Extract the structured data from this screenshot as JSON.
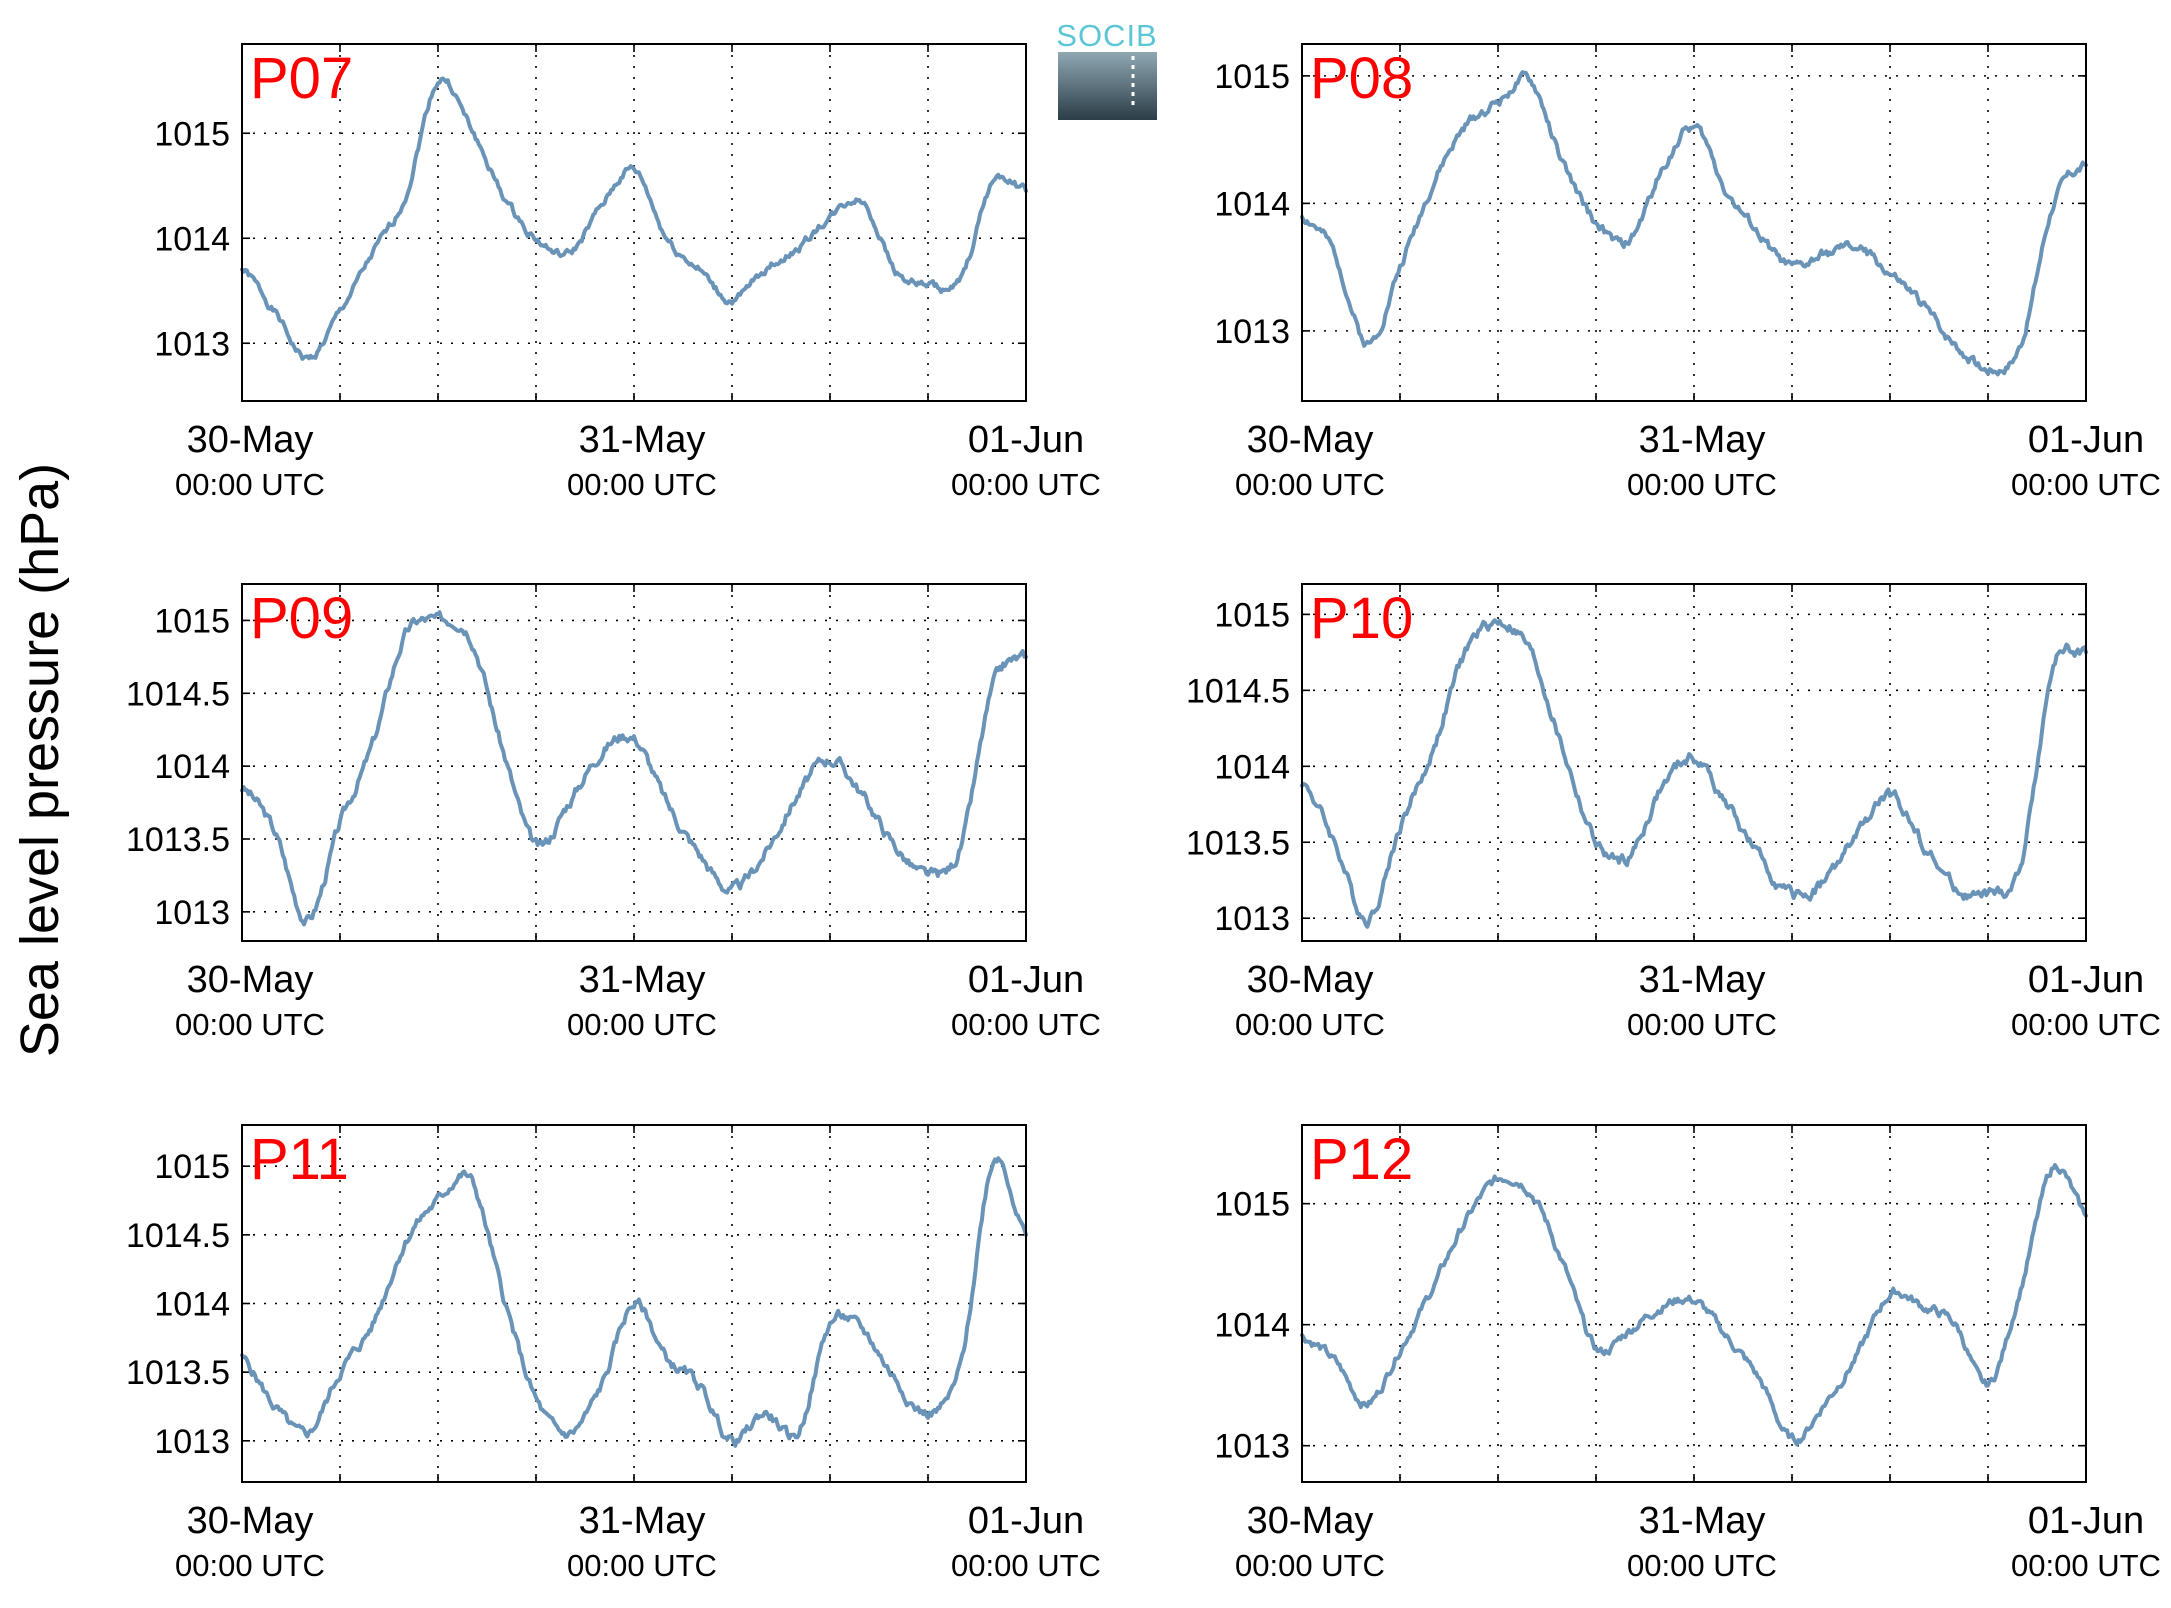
{
  "figure": {
    "ylabel": "Sea level pressure (hPa)",
    "logo_text": "SOCIB"
  },
  "colors": {
    "line": "#6a93b8",
    "station_label": "#ff0000",
    "axis": "#000000",
    "grid": "#000000",
    "logo_top": "#5cc5d6",
    "logo_bottom": "#2b3d47"
  },
  "chart_data": [
    {
      "type": "line",
      "title": "P07",
      "x_tick_labels": [
        [
          "30-May",
          "00:00 UTC"
        ],
        [
          "31-May",
          "00:00 UTC"
        ],
        [
          "01-Jun",
          "00:00 UTC"
        ]
      ],
      "x_range_hours": [
        0,
        48
      ],
      "ylim": [
        1012.45,
        1015.85
      ],
      "y_ticks": [
        1013,
        1014,
        1015
      ],
      "y_tick_labels": [
        "1013",
        "1014",
        "1015"
      ],
      "grid": true,
      "series": [
        {
          "x": [
            0,
            2,
            4,
            6,
            8,
            10,
            12,
            14,
            16,
            18,
            20,
            22,
            24,
            26,
            28,
            30,
            32,
            34,
            36,
            38,
            40,
            42,
            44,
            46,
            48
          ],
          "values": [
            1013.7,
            1013.3,
            1012.85,
            1013.3,
            1013.85,
            1014.4,
            1015.5,
            1015.05,
            1014.4,
            1014.0,
            1013.85,
            1014.3,
            1014.65,
            1014.0,
            1013.7,
            1013.4,
            1013.7,
            1013.9,
            1014.2,
            1014.35,
            1013.7,
            1013.55,
            1013.6,
            1014.55,
            1014.45
          ]
        }
      ]
    },
    {
      "type": "line",
      "title": "P08",
      "x_tick_labels": [
        [
          "30-May",
          "00:00 UTC"
        ],
        [
          "31-May",
          "00:00 UTC"
        ],
        [
          "01-Jun",
          "00:00 UTC"
        ]
      ],
      "x_range_hours": [
        0,
        48
      ],
      "ylim": [
        1012.45,
        1015.25
      ],
      "y_ticks": [
        1013,
        1014,
        1015
      ],
      "y_tick_labels": [
        "1013",
        "1014",
        "1015"
      ],
      "grid": true,
      "series": [
        {
          "x": [
            0,
            2,
            4,
            6,
            8,
            10,
            12,
            14,
            16,
            18,
            20,
            22,
            24,
            26,
            28,
            30,
            32,
            34,
            36,
            38,
            40,
            42,
            44,
            46,
            48
          ],
          "values": [
            1013.9,
            1013.6,
            1012.9,
            1013.5,
            1014.15,
            1014.6,
            1014.8,
            1014.95,
            1014.3,
            1013.85,
            1013.7,
            1014.25,
            1014.6,
            1014.1,
            1013.75,
            1013.5,
            1013.6,
            1013.65,
            1013.45,
            1013.2,
            1012.9,
            1012.7,
            1012.9,
            1014.0,
            1014.3
          ]
        }
      ]
    },
    {
      "type": "line",
      "title": "P09",
      "x_tick_labels": [
        [
          "30-May",
          "00:00 UTC"
        ],
        [
          "31-May",
          "00:00 UTC"
        ],
        [
          "01-Jun",
          "00:00 UTC"
        ]
      ],
      "x_range_hours": [
        0,
        48
      ],
      "ylim": [
        1012.8,
        1015.25
      ],
      "y_ticks": [
        1013,
        1013.5,
        1014,
        1014.5,
        1015
      ],
      "y_tick_labels": [
        "1013",
        "1013.5",
        "1014",
        "1014.5",
        "1015"
      ],
      "grid": true,
      "series": [
        {
          "x": [
            0,
            2,
            4,
            6,
            8,
            10,
            12,
            14,
            16,
            18,
            20,
            22,
            24,
            26,
            28,
            30,
            32,
            34,
            36,
            38,
            40,
            42,
            44,
            46,
            48
          ],
          "values": [
            1013.85,
            1013.55,
            1012.95,
            1013.6,
            1014.15,
            1014.9,
            1015.0,
            1014.9,
            1014.1,
            1013.45,
            1013.75,
            1014.1,
            1014.2,
            1013.75,
            1013.4,
            1013.15,
            1013.4,
            1013.8,
            1014.05,
            1013.8,
            1013.45,
            1013.25,
            1013.45,
            1014.55,
            1014.75
          ]
        }
      ]
    },
    {
      "type": "line",
      "title": "P10",
      "x_tick_labels": [
        [
          "30-May",
          "00:00 UTC"
        ],
        [
          "31-May",
          "00:00 UTC"
        ],
        [
          "01-Jun",
          "00:00 UTC"
        ]
      ],
      "x_range_hours": [
        0,
        48
      ],
      "ylim": [
        1012.85,
        1015.2
      ],
      "y_ticks": [
        1013,
        1013.5,
        1014,
        1014.5,
        1015
      ],
      "y_tick_labels": [
        "1013",
        "1013.5",
        "1014",
        "1014.5",
        "1015"
      ],
      "grid": true,
      "series": [
        {
          "x": [
            0,
            2,
            4,
            6,
            8,
            10,
            12,
            14,
            16,
            18,
            20,
            22,
            24,
            26,
            28,
            30,
            32,
            34,
            36,
            38,
            40,
            42,
            44,
            46,
            48
          ],
          "values": [
            1013.9,
            1013.5,
            1013.0,
            1013.6,
            1014.1,
            1014.75,
            1014.95,
            1014.75,
            1014.1,
            1013.5,
            1013.4,
            1013.85,
            1014.05,
            1013.75,
            1013.4,
            1013.15,
            1013.25,
            1013.55,
            1013.8,
            1013.5,
            1013.2,
            1013.15,
            1013.35,
            1014.65,
            1014.75
          ]
        }
      ]
    },
    {
      "type": "line",
      "title": "P11",
      "x_tick_labels": [
        [
          "30-May",
          "00:00 UTC"
        ],
        [
          "31-May",
          "00:00 UTC"
        ],
        [
          "01-Jun",
          "00:00 UTC"
        ]
      ],
      "x_range_hours": [
        0,
        48
      ],
      "ylim": [
        1012.7,
        1015.3
      ],
      "y_ticks": [
        1013,
        1013.5,
        1014,
        1014.5,
        1015
      ],
      "y_tick_labels": [
        "1013",
        "1013.5",
        "1014",
        "1014.5",
        "1015"
      ],
      "grid": true,
      "series": [
        {
          "x": [
            0,
            2,
            4,
            6,
            8,
            10,
            12,
            14,
            16,
            18,
            20,
            22,
            24,
            26,
            28,
            30,
            32,
            34,
            36,
            38,
            40,
            42,
            44,
            46,
            48
          ],
          "values": [
            1013.6,
            1013.25,
            1013.05,
            1013.5,
            1013.85,
            1014.45,
            1014.75,
            1014.9,
            1014.05,
            1013.3,
            1013.05,
            1013.4,
            1014.0,
            1013.6,
            1013.4,
            1013.0,
            1013.2,
            1013.05,
            1013.85,
            1013.8,
            1013.45,
            1013.2,
            1013.55,
            1015.05,
            1014.5
          ]
        }
      ]
    },
    {
      "type": "line",
      "title": "P12",
      "x_tick_labels": [
        [
          "30-May",
          "00:00 UTC"
        ],
        [
          "31-May",
          "00:00 UTC"
        ],
        [
          "01-Jun",
          "00:00 UTC"
        ]
      ],
      "x_range_hours": [
        0,
        48
      ],
      "ylim": [
        1012.7,
        1015.65
      ],
      "y_ticks": [
        1013,
        1014,
        1015
      ],
      "y_tick_labels": [
        "1013",
        "1014",
        "1015"
      ],
      "grid": true,
      "series": [
        {
          "x": [
            0,
            2,
            4,
            6,
            8,
            10,
            12,
            14,
            16,
            18,
            20,
            22,
            24,
            26,
            28,
            30,
            32,
            34,
            36,
            38,
            40,
            42,
            44,
            46,
            48
          ],
          "values": [
            1013.9,
            1013.7,
            1013.35,
            1013.8,
            1014.3,
            1014.85,
            1015.2,
            1015.1,
            1014.5,
            1013.8,
            1013.95,
            1014.15,
            1014.2,
            1013.9,
            1013.55,
            1013.05,
            1013.35,
            1013.75,
            1014.25,
            1014.15,
            1014.0,
            1013.5,
            1014.3,
            1015.3,
            1014.9
          ]
        }
      ]
    }
  ]
}
